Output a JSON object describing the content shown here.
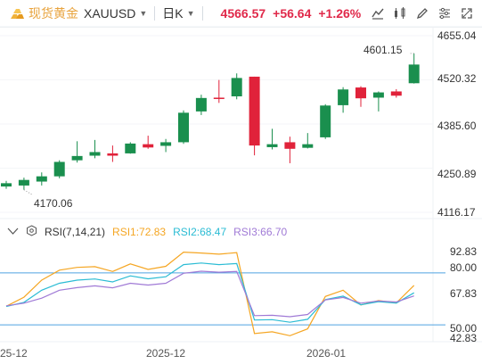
{
  "header": {
    "symbol_name": "现货黄金",
    "symbol_code": "XAUUSD",
    "timeframe": "日K",
    "price": "4566.57",
    "change": "+56.64",
    "change_pct": "+1.26%",
    "tools": [
      "indicators-icon",
      "compare-icon",
      "draw-icon",
      "settings-icon",
      "fullscreen-icon"
    ]
  },
  "chart_data": [
    {
      "type": "candlestick",
      "title": "",
      "y_ticks": [
        "4655.04",
        "4520.32",
        "4385.60",
        "4250.89",
        "4116.17"
      ],
      "ylim": [
        4116.17,
        4655.04
      ],
      "high_label": "4601.15",
      "low_label": "4170.06",
      "candles": [
        {
          "o": 4195,
          "c": 4205,
          "h": 4212,
          "l": 4188
        },
        {
          "o": 4198,
          "c": 4215,
          "h": 4222,
          "l": 4185
        },
        {
          "o": 4210,
          "c": 4226,
          "h": 4238,
          "l": 4198
        },
        {
          "o": 4226,
          "c": 4270,
          "h": 4275,
          "l": 4220
        },
        {
          "o": 4275,
          "c": 4288,
          "h": 4333,
          "l": 4268
        },
        {
          "o": 4289,
          "c": 4300,
          "h": 4337,
          "l": 4281
        },
        {
          "o": 4296,
          "c": 4289,
          "h": 4320,
          "l": 4270
        },
        {
          "o": 4296,
          "c": 4326,
          "h": 4330,
          "l": 4295
        },
        {
          "o": 4324,
          "c": 4314,
          "h": 4350,
          "l": 4310
        },
        {
          "o": 4319,
          "c": 4330,
          "h": 4340,
          "l": 4300
        },
        {
          "o": 4330,
          "c": 4420,
          "h": 4427,
          "l": 4325
        },
        {
          "o": 4424,
          "c": 4465,
          "h": 4475,
          "l": 4413
        },
        {
          "o": 4466,
          "c": 4462,
          "h": 4520,
          "l": 4450
        },
        {
          "o": 4470,
          "c": 4526,
          "h": 4540,
          "l": 4461
        },
        {
          "o": 4530,
          "c": 4320,
          "h": 4530,
          "l": 4290
        },
        {
          "o": 4315,
          "c": 4324,
          "h": 4371,
          "l": 4308
        },
        {
          "o": 4330,
          "c": 4310,
          "h": 4347,
          "l": 4266
        },
        {
          "o": 4313,
          "c": 4324,
          "h": 4358,
          "l": 4311
        },
        {
          "o": 4345,
          "c": 4442,
          "h": 4446,
          "l": 4340
        },
        {
          "o": 4443,
          "c": 4491,
          "h": 4498,
          "l": 4420
        },
        {
          "o": 4497,
          "c": 4464,
          "h": 4501,
          "l": 4438
        },
        {
          "o": 4466,
          "c": 4482,
          "h": 4485,
          "l": 4424
        },
        {
          "o": 4485,
          "c": 4472,
          "h": 4492,
          "l": 4466
        },
        {
          "o": 4510,
          "c": 4567,
          "h": 4601,
          "l": 4509
        }
      ],
      "x_ticks": [
        "25-12",
        "2025-12",
        "2026-01"
      ]
    },
    {
      "type": "line",
      "indicator": "RSI(7,14,21)",
      "y_ticks": [
        "92.83",
        "80.00",
        "67.83",
        "50.00",
        "42.83"
      ],
      "ylim": [
        42.83,
        92.83
      ],
      "reference_lines": [
        80,
        50
      ],
      "series": [
        {
          "name": "RSI1",
          "label": "RSI1:72.83",
          "color": "#f5a623",
          "values": [
            60.7,
            66,
            75.8,
            81.6,
            83.2,
            83.6,
            80.8,
            85.2,
            82,
            83.8,
            92,
            91.5,
            90.8,
            91.7,
            45,
            46,
            43.7,
            47.7,
            66.4,
            70,
            61.5,
            64,
            62.7,
            72.8
          ]
        },
        {
          "name": "RSI2",
          "label": "RSI2:68.47",
          "color": "#2bbcd4",
          "values": [
            60.6,
            63,
            70,
            74,
            75.8,
            76.5,
            74.8,
            78.3,
            76.6,
            77.8,
            84.8,
            85.7,
            84.8,
            85.4,
            52.8,
            53,
            51.5,
            53.2,
            64.6,
            66.6,
            61.6,
            63.4,
            62.5,
            68.5
          ]
        },
        {
          "name": "RSI3",
          "label": "RSI3:66.70",
          "color": "#a07ad6",
          "values": [
            61,
            62.5,
            65.4,
            70,
            71.5,
            72.5,
            71.4,
            74,
            73,
            74,
            79.8,
            81,
            80.4,
            80.8,
            55.3,
            55.5,
            54.7,
            56,
            64.4,
            65.8,
            62.5,
            63.8,
            63.2,
            66.7
          ]
        }
      ]
    }
  ]
}
